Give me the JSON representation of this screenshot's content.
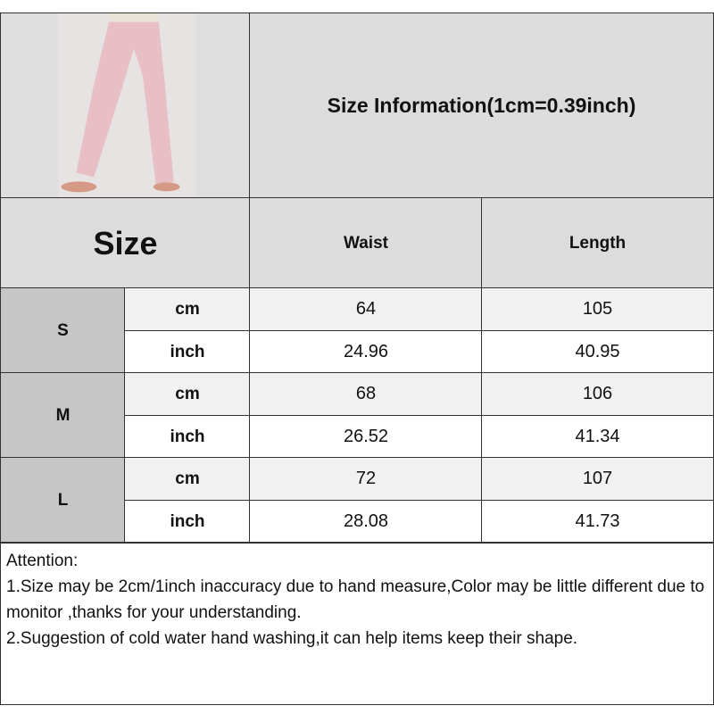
{
  "title": "Size Information(1cm=0.39inch)",
  "size_header": "Size",
  "columns": [
    "Waist",
    "Length"
  ],
  "rows": [
    {
      "size": "S",
      "cm": {
        "unit": "cm",
        "waist": "64",
        "length": "105"
      },
      "inch": {
        "unit": "inch",
        "waist": "24.96",
        "length": "40.95"
      }
    },
    {
      "size": "M",
      "cm": {
        "unit": "cm",
        "waist": "68",
        "length": "106"
      },
      "inch": {
        "unit": "inch",
        "waist": "26.52",
        "length": "41.34"
      }
    },
    {
      "size": "L",
      "cm": {
        "unit": "cm",
        "waist": "72",
        "length": "107"
      },
      "inch": {
        "unit": "inch",
        "waist": "28.08",
        "length": "41.73"
      }
    }
  ],
  "attention": {
    "heading": "Attention:",
    "lines": [
      "1.Size may be 2cm/1inch inaccuracy due to hand measure,Color may be little different due to monitor ,thanks for your understanding.",
      "2.Suggestion of cold water hand washing,it can help items keep their shape."
    ]
  },
  "colors": {
    "header_bg": "#dcdcdc",
    "size_bg": "#c6c6c6",
    "cm_bg": "#f1f1f1",
    "pants": "#e8bfc4"
  }
}
